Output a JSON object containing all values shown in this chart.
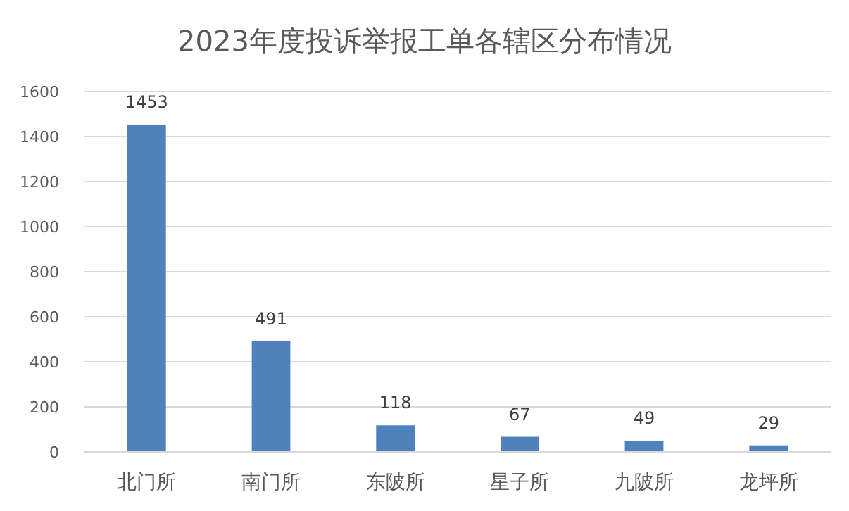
{
  "chart_data": {
    "type": "bar",
    "title": "2023年度投诉举报工单各辖区分布情况",
    "categories": [
      "北门所",
      "南门所",
      "东陂所",
      "星子所",
      "九陂所",
      "龙坪所"
    ],
    "values": [
      1453,
      491,
      118,
      67,
      49,
      29
    ],
    "color": "#4f81bd",
    "ylim": [
      0,
      1600
    ],
    "yticks": [
      0,
      200,
      400,
      600,
      800,
      1000,
      1200,
      1400,
      1600
    ],
    "grid": "y",
    "data_labels": true
  }
}
